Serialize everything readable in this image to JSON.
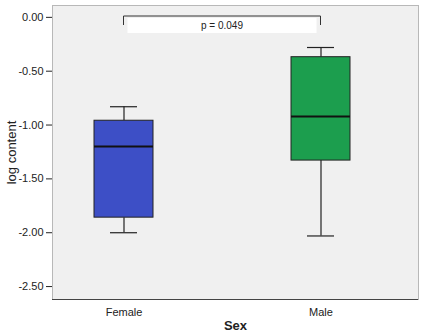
{
  "chart_data": {
    "type": "box",
    "x_label": "Sex",
    "y_label": "log content",
    "categories": [
      "Female",
      "Male"
    ],
    "whisker_low": [
      -2.0,
      -2.03
    ],
    "q1": [
      -1.86,
      -1.33
    ],
    "median": [
      -1.2,
      -0.92
    ],
    "q3": [
      -0.96,
      -0.37
    ],
    "whisker_high": [
      -0.83,
      -0.28
    ],
    "colors": [
      "#3d4fc6",
      "#1c9e4e"
    ],
    "ylim": [
      -2.62,
      0.11
    ],
    "yticks": [
      {
        "value": -2.5,
        "label": "-2.50"
      },
      {
        "value": -2,
        "label": "-2.00"
      },
      {
        "value": -1.5,
        "label": "-1.50"
      },
      {
        "value": -1,
        "label": "-1.00"
      },
      {
        "value": -0.5,
        "label": "-0.50"
      },
      {
        "value": 0,
        "label": "0.00"
      }
    ],
    "annotation": "p = 0.049"
  }
}
